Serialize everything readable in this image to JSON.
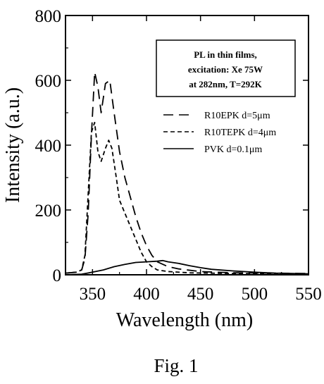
{
  "chart_data": {
    "type": "line",
    "xlabel": "Wavelength (nm)",
    "ylabel": "Intensity (a.u.)",
    "xlim": [
      325,
      550
    ],
    "ylim": [
      0,
      800
    ],
    "xticks": [
      350,
      400,
      450,
      500,
      550
    ],
    "yticks": [
      0,
      200,
      400,
      600,
      800
    ],
    "grid": false,
    "annotation": [
      "PL in thin films,",
      "excitation: Xe 75W",
      "at 282nm, T=292K"
    ],
    "legend_position": "top-right",
    "series": [
      {
        "name": "R10EPK d=5μm",
        "dash": "long-dash",
        "x": [
          325,
          335,
          340,
          343,
          346,
          349,
          352,
          355,
          358,
          362,
          366,
          370,
          375,
          380,
          385,
          390,
          395,
          400,
          405,
          410,
          420,
          430,
          450,
          480,
          550
        ],
        "y": [
          5,
          8,
          15,
          50,
          190,
          430,
          625,
          580,
          500,
          590,
          600,
          500,
          380,
          300,
          240,
          180,
          130,
          90,
          60,
          40,
          25,
          18,
          10,
          6,
          4
        ]
      },
      {
        "name": "R10TEPK d=4μm",
        "dash": "short-dash",
        "x": [
          325,
          335,
          340,
          343,
          346,
          349,
          352,
          355,
          358,
          362,
          365,
          368,
          372,
          375,
          380,
          385,
          390,
          395,
          400,
          405,
          410,
          420,
          440,
          480,
          550
        ],
        "y": [
          5,
          8,
          15,
          60,
          250,
          440,
          470,
          380,
          350,
          390,
          415,
          390,
          300,
          230,
          190,
          150,
          110,
          70,
          40,
          25,
          15,
          10,
          6,
          4,
          3
        ]
      },
      {
        "name": "PVK d=0.1μm",
        "dash": "solid",
        "x": [
          325,
          340,
          350,
          360,
          370,
          380,
          390,
          400,
          410,
          415,
          420,
          430,
          440,
          450,
          460,
          480,
          500,
          520,
          550
        ],
        "y": [
          0,
          2,
          8,
          15,
          25,
          32,
          38,
          40,
          42,
          44,
          40,
          35,
          28,
          22,
          17,
          12,
          8,
          5,
          3
        ]
      }
    ]
  },
  "caption": "Fig. 1"
}
